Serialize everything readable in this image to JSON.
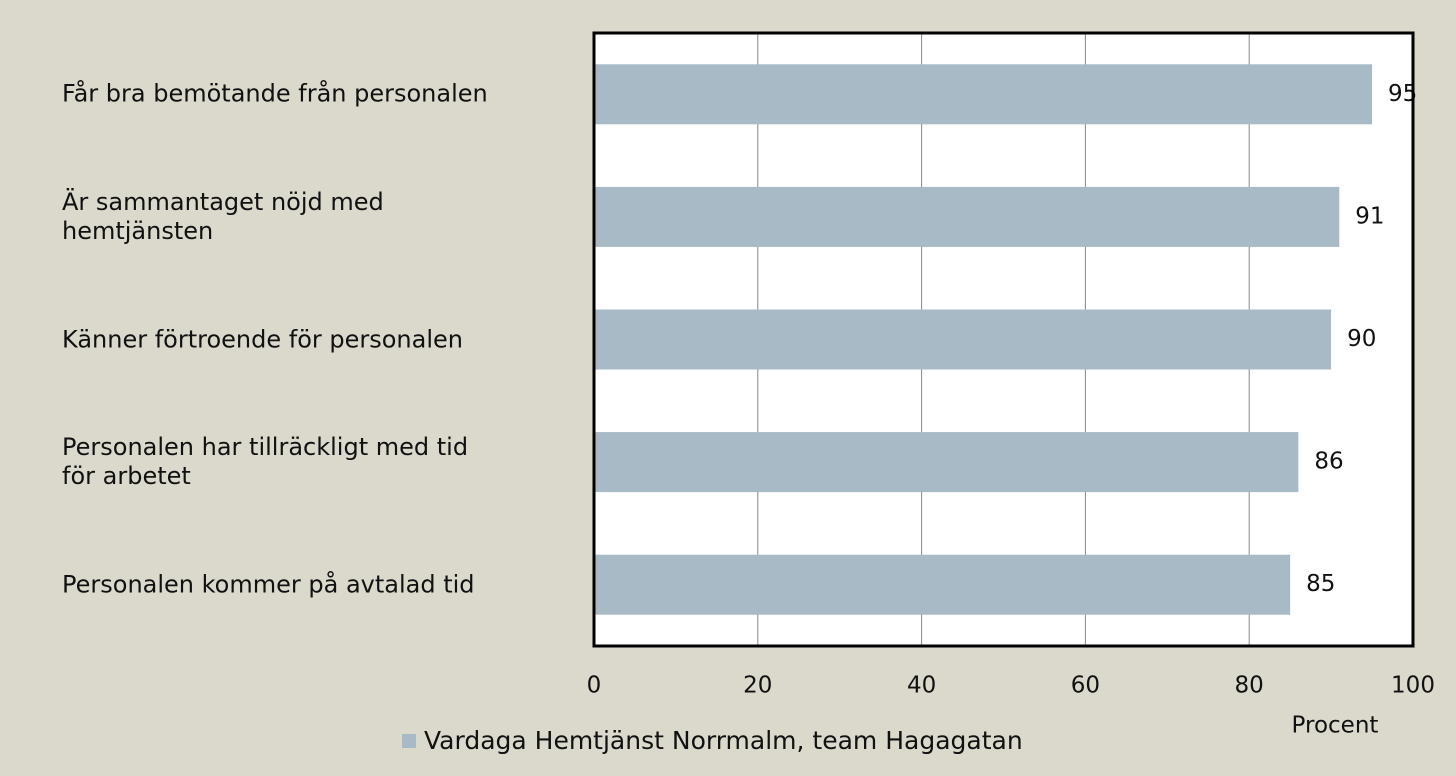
{
  "chart_data": {
    "type": "barh",
    "categories": [
      "Får bra bemötande från personalen",
      "Är sammantaget nöjd med\nhemtjänsten",
      "Känner förtroende för personalen",
      "Personalen har tillräckligt med tid\nför arbetet",
      "Personalen kommer på avtalad tid"
    ],
    "series": [
      {
        "name": "Vardaga Hemtjänst Norrmalm, team Hagagatan",
        "color": "#a7bac5",
        "values": [
          95,
          91,
          90,
          86,
          85
        ]
      }
    ],
    "xlabel": "Procent",
    "xlim": [
      0,
      100
    ],
    "xticks": [
      0,
      20,
      40,
      60,
      80,
      100
    ],
    "grid": true,
    "legend": "bottom"
  }
}
